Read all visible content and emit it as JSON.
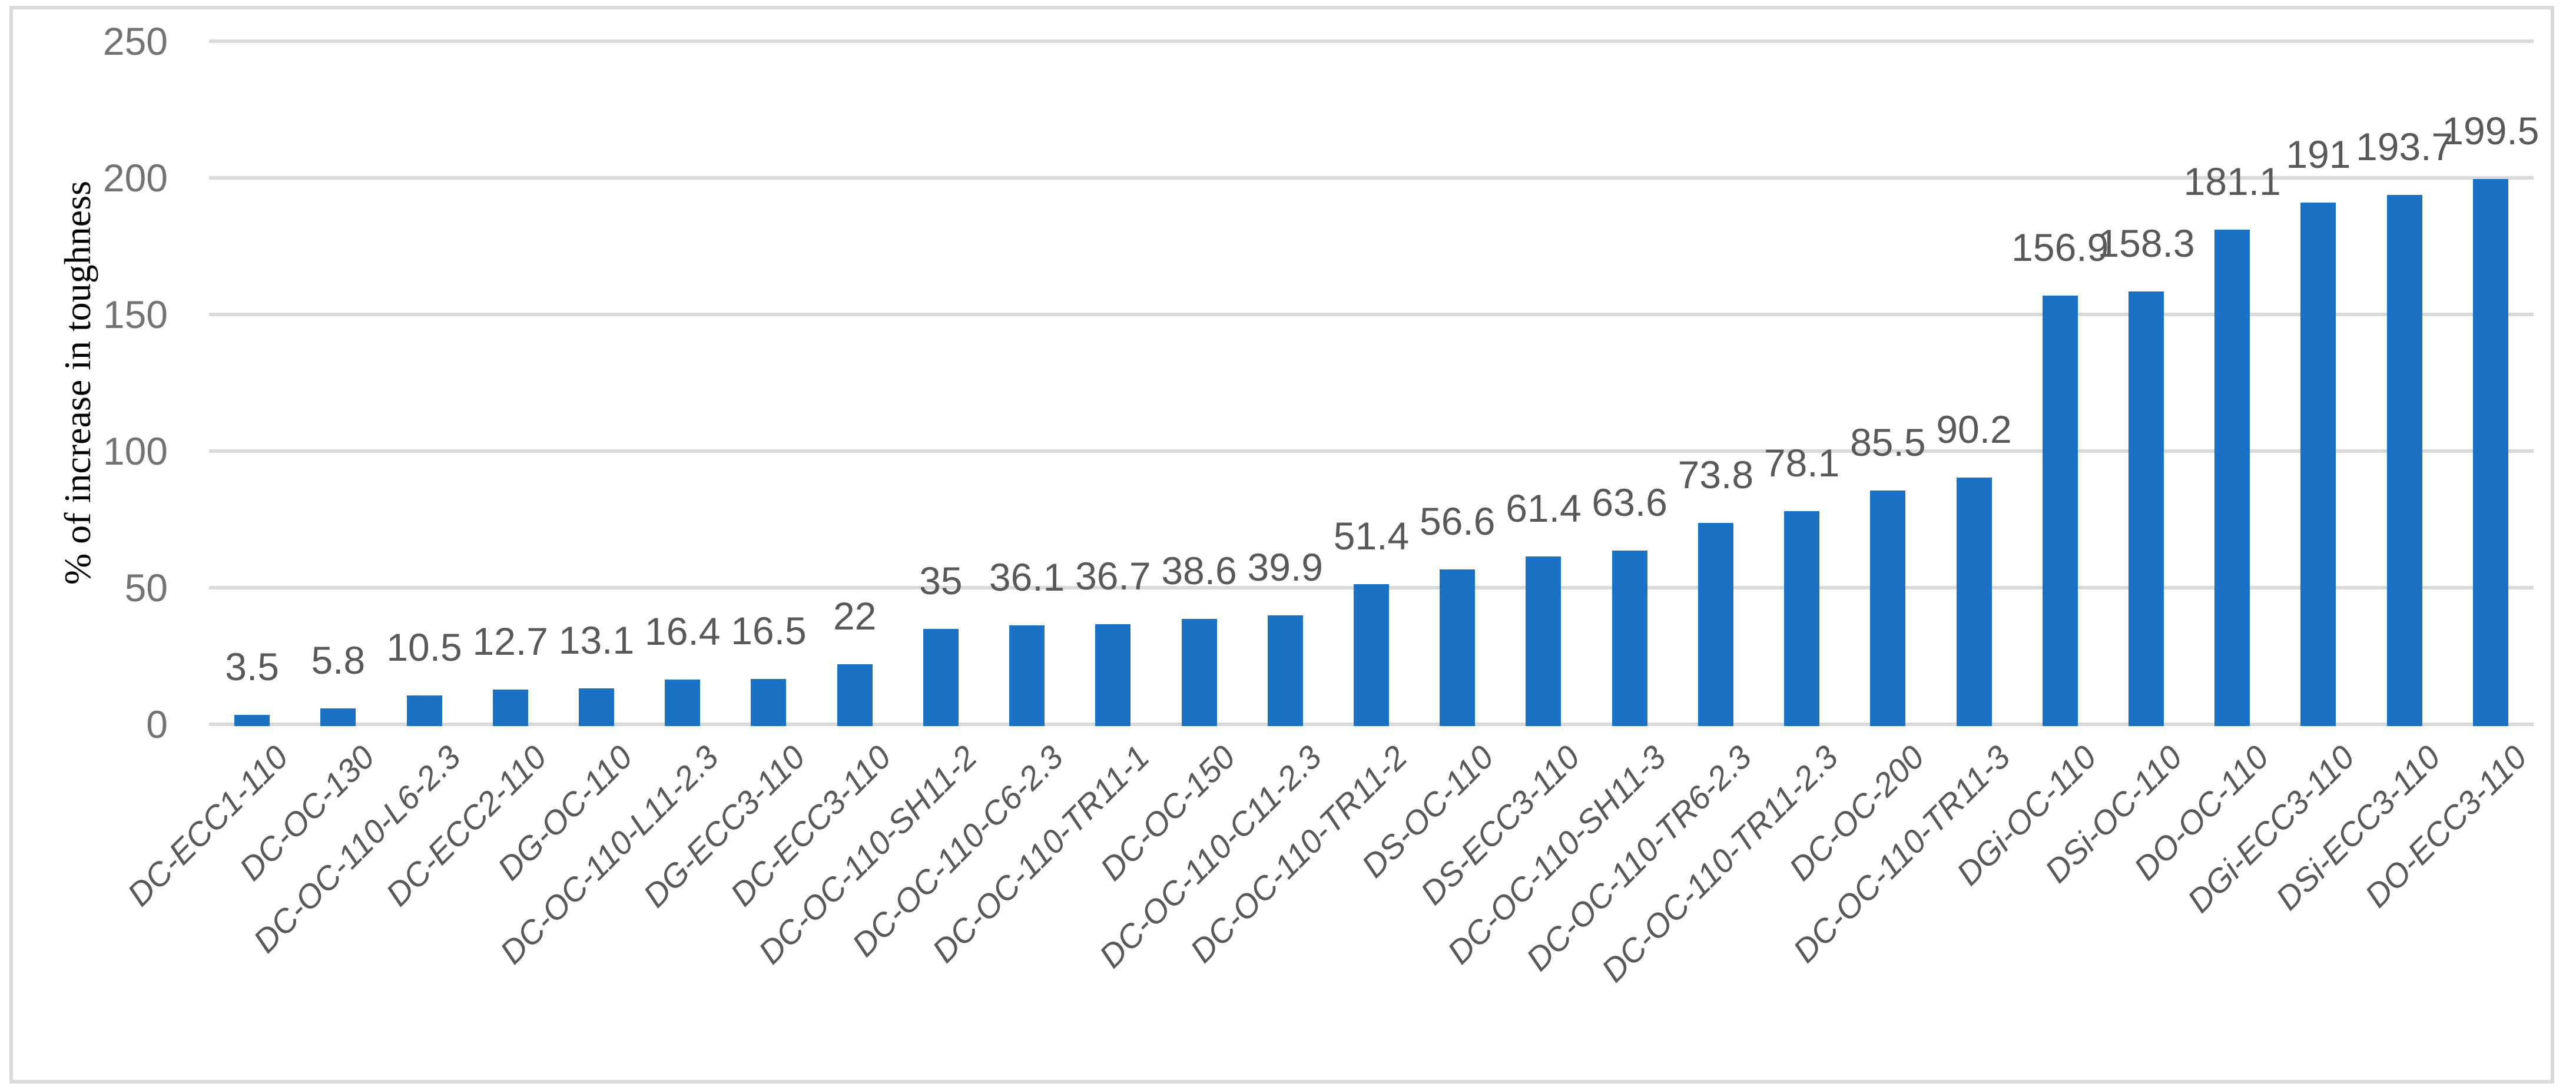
{
  "chart_data": {
    "type": "bar",
    "title": "",
    "categories": [
      "DC-ECC1-110",
      "DC-OC-130",
      "DC-OC-110-L6-2.3",
      "DC-ECC2-110",
      "DG-OC-110",
      "DC-OC-110-L11-2.3",
      "DG-ECC3-110",
      "DC-ECC3-110",
      "DC-OC-110-SH11-2",
      "DC-OC-110-C6-2.3",
      "DC-OC-110-TR11-1",
      "DC-OC-150",
      "DC-OC-110-C11-2.3",
      "DC-OC-110-TR11-2",
      "DS-OC-110",
      "DS-ECC3-110",
      "DC-OC-110-SH11-3",
      "DC-OC-110-TR6-2.3",
      "DC-OC-110-TR11-2.3",
      "DC-OC-200",
      "DC-OC-110-TR11-3",
      "DGi-OC-110",
      "DSi-OC-110",
      "DO-OC-110",
      "DGi-ECC3-110",
      "DSi-ECC3-110",
      "DO-ECC3-110"
    ],
    "values": [
      3.5,
      5.8,
      10.5,
      12.7,
      13.1,
      16.4,
      16.5,
      22,
      35,
      36.1,
      36.7,
      38.6,
      39.9,
      51.4,
      56.6,
      61.4,
      63.6,
      73.8,
      78.1,
      85.5,
      90.2,
      156.9,
      158.3,
      181.1,
      191,
      193.7,
      199.5
    ],
    "xlabel": "",
    "ylabel": "% of increase in toughness",
    "ylim": [
      0,
      250
    ],
    "yticks": [
      0,
      50,
      100,
      150,
      200,
      250
    ],
    "grid": true,
    "legend": false,
    "data_labels": true,
    "bar_color": "#1B72C5",
    "gridline_color": "#D9D9D9",
    "border_color": "#D9D9D9",
    "tick_label_color": "#737373",
    "data_label_color": "#595959",
    "category_label_color": "#595959",
    "axis_title_color": "#000000"
  }
}
